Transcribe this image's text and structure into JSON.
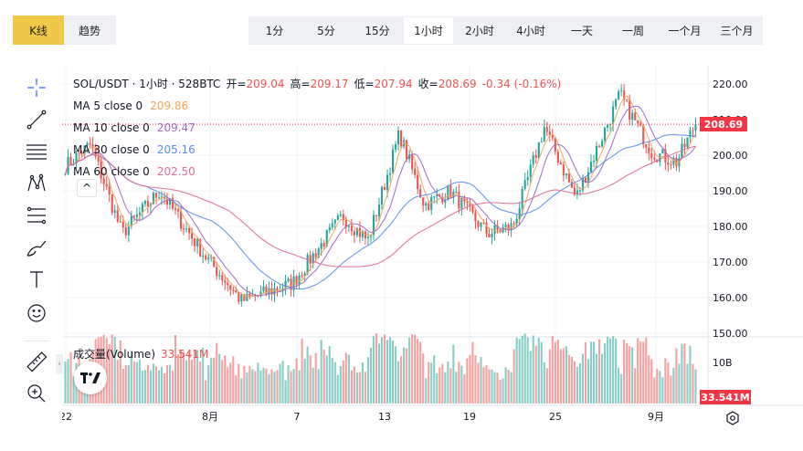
{
  "toolbar": {
    "modes": [
      {
        "label": "K线",
        "active": true
      },
      {
        "label": "趋势",
        "active": false
      }
    ],
    "intervals": [
      {
        "label": "1分",
        "active": false
      },
      {
        "label": "5分",
        "active": false
      },
      {
        "label": "15分",
        "active": false
      },
      {
        "label": "1小时",
        "active": true
      },
      {
        "label": "2小时",
        "active": false
      },
      {
        "label": "4小时",
        "active": false
      },
      {
        "label": "一天",
        "active": false
      },
      {
        "label": "一周",
        "active": false
      },
      {
        "label": "一个月",
        "active": false
      },
      {
        "label": "三个月",
        "active": false
      }
    ]
  },
  "drawing_tools": [
    {
      "name": "crosshair-icon"
    },
    {
      "name": "trend-line-icon"
    },
    {
      "name": "horizontal-lines-icon"
    },
    {
      "name": "pattern-icon"
    },
    {
      "name": "fib-icon"
    },
    {
      "name": "brush-icon"
    },
    {
      "name": "text-icon"
    },
    {
      "name": "emoji-icon"
    },
    {
      "name": "ruler-icon"
    },
    {
      "name": "zoom-in-icon"
    }
  ],
  "legend": {
    "title": "SOL/USDT · 1小时 · 528BTC",
    "open_label": "开=",
    "open": "209.04",
    "high_label": "高=",
    "high": "209.17",
    "low_label": "低=",
    "low": "207.94",
    "close_label": "收=",
    "close": "208.69",
    "change": "-0.34 (-0.16%)",
    "collapse_glyph": "^"
  },
  "moving_averages": [
    {
      "label": "MA 5 close 0",
      "value": "209.86",
      "color": "#f7a35c"
    },
    {
      "label": "MA 10 close 0",
      "value": "209.47",
      "color": "#9c6bbf"
    },
    {
      "label": "MA 30 close 0",
      "value": "205.16",
      "color": "#5b8ee6"
    },
    {
      "label": "MA 60 close 0",
      "value": "202.50",
      "color": "#e06b95"
    }
  ],
  "volume_legend": {
    "label": "成交量(Volume)",
    "value": "33.541M"
  },
  "price_tags": {
    "last_price": "208.69",
    "last_volume": "33.541M"
  },
  "colors": {
    "up": "#26a69a",
    "down": "#ef5350",
    "accent": "#f0c94a",
    "price_tag": "#f23645",
    "grid": "#f0f3fa"
  },
  "chart_data": {
    "type": "candlestick",
    "title": "SOL/USDT · 1小时 · 528BTC",
    "price_axis": {
      "ticks": [
        "220.00",
        "210.00",
        "200.00",
        "190.00",
        "180.00",
        "170.00",
        "160.00",
        "150.00"
      ],
      "range": [
        150,
        220
      ]
    },
    "volume_axis": {
      "ticks": [
        "10B"
      ]
    },
    "time_axis": {
      "ticks": [
        "22",
        "8月",
        "7",
        "13",
        "19",
        "25",
        "9月"
      ]
    },
    "last_price": 208.69,
    "price_trend_keypoints": [
      {
        "t": 0,
        "price": 197
      },
      {
        "t": 0.04,
        "price": 203
      },
      {
        "t": 0.09,
        "price": 178
      },
      {
        "t": 0.15,
        "price": 190
      },
      {
        "t": 0.22,
        "price": 172
      },
      {
        "t": 0.28,
        "price": 159
      },
      {
        "t": 0.36,
        "price": 164
      },
      {
        "t": 0.44,
        "price": 183
      },
      {
        "t": 0.48,
        "price": 176
      },
      {
        "t": 0.53,
        "price": 206
      },
      {
        "t": 0.57,
        "price": 186
      },
      {
        "t": 0.61,
        "price": 190
      },
      {
        "t": 0.67,
        "price": 178
      },
      {
        "t": 0.71,
        "price": 180
      },
      {
        "t": 0.76,
        "price": 208
      },
      {
        "t": 0.81,
        "price": 188
      },
      {
        "t": 0.88,
        "price": 217
      },
      {
        "t": 0.93,
        "price": 201
      },
      {
        "t": 0.97,
        "price": 198
      },
      {
        "t": 1.0,
        "price": 209
      }
    ]
  }
}
